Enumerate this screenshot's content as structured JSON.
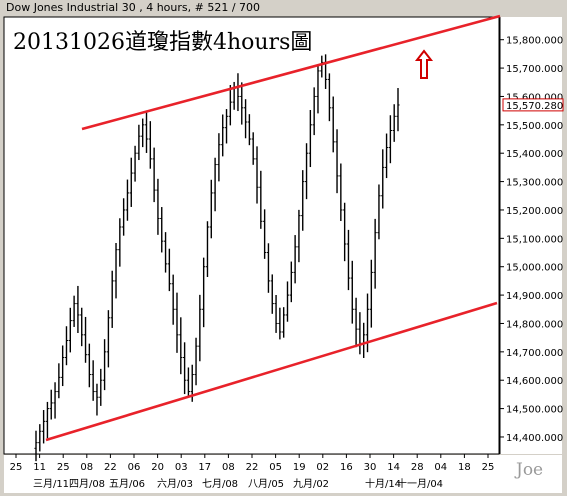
{
  "header": {
    "title": "Dow Jones Industrial 30 , 4 hours, # 521 / 700"
  },
  "annotation": "20131026道瓊指數4hours圖",
  "watermark": "Joe",
  "colors": {
    "background": "#ffffff",
    "panel": "#d4d0c8",
    "candle": "#000000",
    "trendline": "#e8222a",
    "arrow": "#d00000",
    "last_price": "#d00000"
  },
  "chart_data": {
    "type": "bar",
    "ylim": [
      14340,
      15880
    ],
    "yticks": [
      14400,
      14500,
      14600,
      14700,
      14800,
      14900,
      15000,
      15100,
      15200,
      15300,
      15400,
      15500,
      15600,
      15700,
      15800
    ],
    "ytick_labels": [
      "14,400.000",
      "14,500.000",
      "14,600.000",
      "14,700.000",
      "14,800.000",
      "14,900.000",
      "15,000.000",
      "15,100.000",
      "15,200.000",
      "15,300.000",
      "15,400.000",
      "15,500.000",
      "15,600.000",
      "15,700.000",
      "15,800.000"
    ],
    "last_price": 15570.28,
    "last_price_label": "15,570.280",
    "day_ticks": [
      "25",
      "11",
      "25",
      "08",
      "22",
      "06",
      "20",
      "03",
      "17",
      "08",
      "22",
      "05",
      "19",
      "02",
      "16",
      "30",
      "14",
      "28",
      "04",
      "18",
      "25"
    ],
    "month_labels": [
      "三月/11",
      "四月/08",
      "五月/06",
      "六月/03",
      "七月/08",
      "八月/05",
      "九月/02",
      "十月/14",
      "十一月/04"
    ],
    "prices": [
      14380,
      14420,
      14455,
      14500,
      14520,
      14560,
      14610,
      14680,
      14740,
      14810,
      14870,
      14830,
      14760,
      14690,
      14620,
      14560,
      14540,
      14600,
      14700,
      14820,
      14950,
      15060,
      15140,
      15200,
      15260,
      15330,
      15400,
      15460,
      15500,
      15450,
      15380,
      15270,
      15170,
      15090,
      15010,
      14940,
      14850,
      14760,
      14680,
      14600,
      14560,
      14620,
      14720,
      14850,
      15000,
      15140,
      15260,
      15360,
      15430,
      15490,
      15530,
      15580,
      15630,
      15600,
      15560,
      15510,
      15450,
      15380,
      15280,
      15160,
      15050,
      14950,
      14870,
      14800,
      14770,
      14830,
      14900,
      14980,
      15070,
      15180,
      15300,
      15400,
      15500,
      15600,
      15690,
      15720,
      15660,
      15560,
      15440,
      15320,
      15200,
      15080,
      14960,
      14850,
      14780,
      14730,
      14760,
      14850,
      14980,
      15120,
      15250,
      15350,
      15420,
      15480,
      15530,
      15570
    ],
    "trendlines": [
      {
        "x1": 82,
        "y1": 129,
        "x2": 500,
        "y2": 16
      },
      {
        "x1": 46,
        "y1": 440,
        "x2": 497,
        "y2": 303
      }
    ]
  }
}
